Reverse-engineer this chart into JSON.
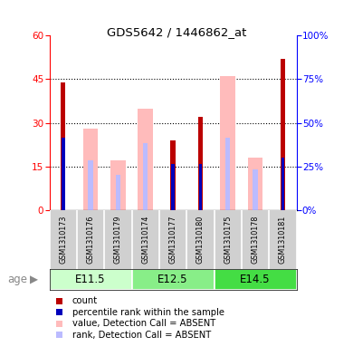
{
  "title": "GDS5642 / 1446862_at",
  "samples": [
    "GSM1310173",
    "GSM1310176",
    "GSM1310179",
    "GSM1310174",
    "GSM1310177",
    "GSM1310180",
    "GSM1310175",
    "GSM1310178",
    "GSM1310181"
  ],
  "groups": [
    {
      "label": "E11.5",
      "indices": [
        0,
        1,
        2
      ]
    },
    {
      "label": "E12.5",
      "indices": [
        3,
        4,
        5
      ]
    },
    {
      "label": "E14.5",
      "indices": [
        6,
        7,
        8
      ]
    }
  ],
  "count_values": [
    44,
    0,
    0,
    0,
    24,
    32,
    0,
    0,
    52
  ],
  "percentile_values": [
    25,
    0,
    0,
    0,
    16,
    16,
    0,
    0,
    18
  ],
  "pink_bar_values": [
    0,
    28,
    17,
    35,
    0,
    0,
    46,
    18,
    0
  ],
  "blue_bar_values": [
    0,
    17,
    12,
    23,
    0,
    0,
    25,
    14,
    0
  ],
  "left_ylim": [
    0,
    60
  ],
  "left_yticks": [
    0,
    15,
    30,
    45,
    60
  ],
  "right_ylim": [
    0,
    100
  ],
  "right_yticks": [
    0,
    25,
    50,
    75,
    100
  ],
  "count_color": "#bb0000",
  "percentile_color": "#0000bb",
  "pink_color": "#ffbbbb",
  "blue_light_color": "#bbbbff",
  "group_colors": [
    "#ccffcc",
    "#88ee88",
    "#44dd44"
  ],
  "age_label": "age",
  "legend_items": [
    {
      "color": "#bb0000",
      "label": "count"
    },
    {
      "color": "#0000bb",
      "label": "percentile rank within the sample"
    },
    {
      "color": "#ffbbbb",
      "label": "value, Detection Call = ABSENT"
    },
    {
      "color": "#bbbbff",
      "label": "rank, Detection Call = ABSENT"
    }
  ]
}
